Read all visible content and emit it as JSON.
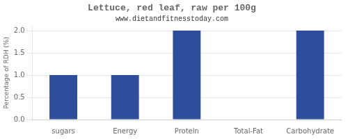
{
  "chart_data": {
    "type": "bar",
    "title": "Lettuce, red leaf, raw per 100g",
    "subtitle": "www.dietandfitnesstoday.com",
    "categories": [
      "sugars",
      "Energy",
      "Protein",
      "Total-Fat",
      "Carbohydrate"
    ],
    "values": [
      1.0,
      1.0,
      2.0,
      0.0,
      2.0
    ],
    "color": "#2e4d9b",
    "ylabel": "Percentage of RDH (%)",
    "ylim": [
      0,
      2.1
    ],
    "yticks": [
      {
        "value": 0.0,
        "label": "0.0"
      },
      0.5,
      {
        "value": 1.0,
        "label": "1.0"
      },
      1.5,
      {
        "value": 2.0,
        "label": "2.0"
      }
    ],
    "grid": true
  }
}
